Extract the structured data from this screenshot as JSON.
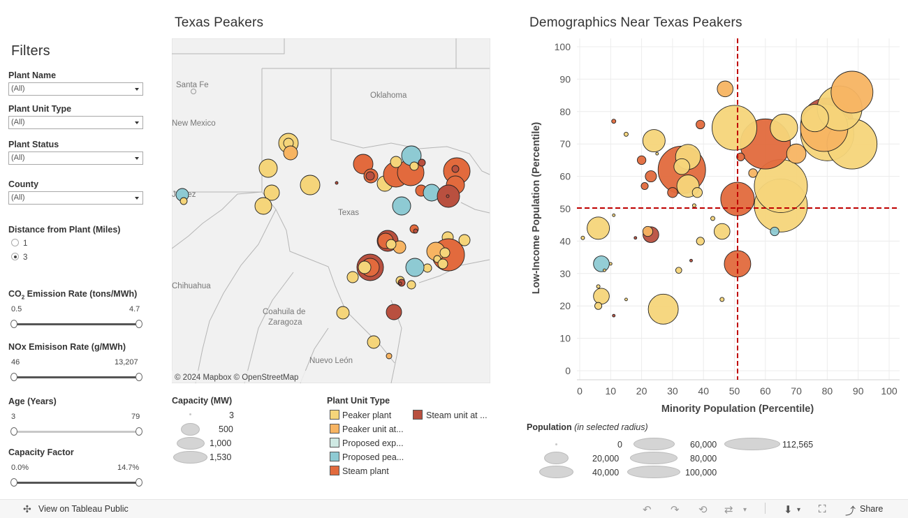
{
  "filters": {
    "heading": "Filters",
    "plant_name": {
      "label": "Plant Name",
      "value": "(All)"
    },
    "plant_unit_type": {
      "label": "Plant Unit Type",
      "value": "(All)"
    },
    "plant_status": {
      "label": "Plant Status",
      "value": "(All)"
    },
    "county": {
      "label": "County",
      "value": "(All)"
    },
    "distance": {
      "label": "Distance from Plant (Miles)",
      "options": [
        "1",
        "3"
      ],
      "selected": "3"
    },
    "co2": {
      "label_pre": "CO",
      "label_sub": "2",
      "label_post": " Emission Rate (tons/MWh)",
      "min": "0.5",
      "max": "4.7"
    },
    "nox": {
      "label": "NOх Emisison Rate (g/MWh)",
      "min": "46",
      "max": "13,207"
    },
    "age": {
      "label": "Age (Years)",
      "min": "3",
      "max": "79"
    },
    "capacity_factor": {
      "label": "Capacity Factor",
      "min": "0.0%",
      "max": "14.7%"
    }
  },
  "map": {
    "title": "Texas Peakers",
    "places": [
      "Santa Fe",
      "Oklahoma",
      "New Mexico",
      "Texas",
      "Chihuahua",
      "Coahuila de",
      "Zaragoza",
      "Nuevo León",
      "Juárez"
    ],
    "attribution": "© 2024 Mapbox  © OpenStreetMap"
  },
  "legend_capacity": {
    "title": "Capacity (MW)",
    "items": [
      "3",
      "500",
      "1,000",
      "1,530"
    ]
  },
  "legend_type": {
    "title": "Plant Unit Type",
    "items": [
      {
        "label": "Peaker plant",
        "color": "#f5d57a"
      },
      {
        "label": "Peaker unit at...",
        "color": "#f7b462"
      },
      {
        "label": "Proposed exp...",
        "color": "#cfe9e3"
      },
      {
        "label": "Proposed pea...",
        "color": "#8ecad3"
      },
      {
        "label": "Steam plant",
        "color": "#e26a3d"
      },
      {
        "label": "Steam unit at ...",
        "color": "#b9503f"
      }
    ]
  },
  "scatter": {
    "title": "Demographics Near Texas Peakers",
    "xlabel": "Minority Population (Percentile)",
    "ylabel": "Low-Income Population (Percentile)",
    "xticks": [
      "0",
      "10",
      "20",
      "30",
      "40",
      "50",
      "60",
      "70",
      "80",
      "90",
      "100"
    ],
    "yticks": [
      "0",
      "10",
      "20",
      "30",
      "40",
      "50",
      "60",
      "70",
      "80",
      "90",
      "100"
    ]
  },
  "legend_population": {
    "title": "Population",
    "subtitle": "(in selected radius)",
    "items": [
      "0",
      "20,000",
      "40,000",
      "60,000",
      "80,000",
      "100,000",
      "112,565"
    ]
  },
  "footer": {
    "view_label": "View on Tableau Public",
    "share_label": "Share"
  },
  "chart_data": {
    "type": "scatter",
    "title": "Demographics Near Texas Peakers",
    "xlabel": "Minority Population (Percentile)",
    "ylabel": "Low-Income Population (Percentile)",
    "xlim": [
      0,
      100
    ],
    "ylim": [
      0,
      100
    ],
    "reference_lines": {
      "x": 49,
      "y": 50
    },
    "size_key": "Population (in selected radius)",
    "points": [
      {
        "x": 1,
        "y": 41,
        "pop": 500,
        "t": "pk"
      },
      {
        "x": 6,
        "y": 26,
        "pop": 500,
        "t": "pk"
      },
      {
        "x": 6,
        "y": 44,
        "pop": 20000,
        "t": "pk"
      },
      {
        "x": 6,
        "y": 20,
        "pop": 2000,
        "t": "pk"
      },
      {
        "x": 7,
        "y": 23,
        "pop": 10000,
        "t": "pk"
      },
      {
        "x": 7,
        "y": 33,
        "pop": 10000,
        "t": "pp"
      },
      {
        "x": 8,
        "y": 31,
        "pop": 300,
        "t": "pk"
      },
      {
        "x": 10,
        "y": 33,
        "pop": 300,
        "t": "pk"
      },
      {
        "x": 11,
        "y": 77,
        "pop": 700,
        "t": "st"
      },
      {
        "x": 11,
        "y": 48,
        "pop": 300,
        "t": "pk"
      },
      {
        "x": 11,
        "y": 17,
        "pop": 300,
        "t": "su"
      },
      {
        "x": 15,
        "y": 73,
        "pop": 700,
        "t": "pk"
      },
      {
        "x": 15,
        "y": 22,
        "pop": 300,
        "t": "pk"
      },
      {
        "x": 18,
        "y": 41,
        "pop": 300,
        "t": "su"
      },
      {
        "x": 20,
        "y": 65,
        "pop": 3000,
        "t": "st"
      },
      {
        "x": 21,
        "y": 57,
        "pop": 2000,
        "t": "st"
      },
      {
        "x": 22,
        "y": 43,
        "pop": 4000,
        "t": "pu"
      },
      {
        "x": 23,
        "y": 42,
        "pop": 10000,
        "t": "su"
      },
      {
        "x": 23,
        "y": 60,
        "pop": 5000,
        "t": "st"
      },
      {
        "x": 24,
        "y": 71,
        "pop": 20000,
        "t": "pk"
      },
      {
        "x": 25,
        "y": 67,
        "pop": 300,
        "t": "pk"
      },
      {
        "x": 27,
        "y": 19,
        "pop": 36000,
        "t": "pk"
      },
      {
        "x": 30,
        "y": 55,
        "pop": 4000,
        "t": "st"
      },
      {
        "x": 32,
        "y": 31,
        "pop": 1500,
        "t": "pk"
      },
      {
        "x": 33,
        "y": 63,
        "pop": 10000,
        "t": "pk"
      },
      {
        "x": 33,
        "y": 62,
        "pop": 90000,
        "t": "st"
      },
      {
        "x": 35,
        "y": 66,
        "pop": 25000,
        "t": "pk"
      },
      {
        "x": 35,
        "y": 57,
        "pop": 20000,
        "t": "pk"
      },
      {
        "x": 36,
        "y": 34,
        "pop": 300,
        "t": "su"
      },
      {
        "x": 37,
        "y": 51,
        "pop": 500,
        "t": "pk"
      },
      {
        "x": 38,
        "y": 55,
        "pop": 4000,
        "t": "pk"
      },
      {
        "x": 39,
        "y": 40,
        "pop": 2500,
        "t": "pk"
      },
      {
        "x": 39,
        "y": 76,
        "pop": 3000,
        "t": "st"
      },
      {
        "x": 43,
        "y": 47,
        "pop": 700,
        "t": "pk"
      },
      {
        "x": 46,
        "y": 43,
        "pop": 10000,
        "t": "pk"
      },
      {
        "x": 46,
        "y": 22,
        "pop": 700,
        "t": "pk"
      },
      {
        "x": 47,
        "y": 87,
        "pop": 10000,
        "t": "pu"
      },
      {
        "x": 50,
        "y": 75,
        "pop": 80000,
        "t": "pk"
      },
      {
        "x": 51,
        "y": 53,
        "pop": 45000,
        "t": "st"
      },
      {
        "x": 51,
        "y": 33,
        "pop": 28000,
        "t": "st"
      },
      {
        "x": 52,
        "y": 66,
        "pop": 2500,
        "t": "st"
      },
      {
        "x": 56,
        "y": 61,
        "pop": 3000,
        "t": "pu"
      },
      {
        "x": 60,
        "y": 70,
        "pop": 100000,
        "t": "st"
      },
      {
        "x": 63,
        "y": 43,
        "pop": 3000,
        "t": "pp"
      },
      {
        "x": 65,
        "y": 51,
        "pop": 112565,
        "t": "pk"
      },
      {
        "x": 65,
        "y": 57,
        "pop": 112565,
        "t": "pk"
      },
      {
        "x": 66,
        "y": 75,
        "pop": 30000,
        "t": "pk"
      },
      {
        "x": 70,
        "y": 67,
        "pop": 15000,
        "t": "pu"
      },
      {
        "x": 76,
        "y": 78,
        "pop": 30000,
        "t": "pk"
      },
      {
        "x": 79,
        "y": 75,
        "pop": 90000,
        "t": "pu"
      },
      {
        "x": 80,
        "y": 76,
        "pop": 112565,
        "t": "su"
      },
      {
        "x": 80,
        "y": 73,
        "pop": 112565,
        "t": "pk"
      },
      {
        "x": 84,
        "y": 81,
        "pop": 80000,
        "t": "pk"
      },
      {
        "x": 88,
        "y": 86,
        "pop": 70000,
        "t": "pu"
      },
      {
        "x": 88,
        "y": 70,
        "pop": 100000,
        "t": "pk"
      }
    ],
    "map_points": [
      {
        "x": 413,
        "y": 205,
        "r": 14,
        "t": "pk"
      },
      {
        "x": 413,
        "y": 205,
        "r": 7,
        "t": "pk"
      },
      {
        "x": 416,
        "y": 219,
        "r": 10,
        "t": "pu"
      },
      {
        "x": 384,
        "y": 241,
        "r": 13,
        "t": "pk"
      },
      {
        "x": 389,
        "y": 276,
        "r": 11,
        "t": "pk"
      },
      {
        "x": 377,
        "y": 295,
        "r": 12,
        "t": "pk"
      },
      {
        "x": 444,
        "y": 265,
        "r": 14,
        "t": "pk"
      },
      {
        "x": 261,
        "y": 279,
        "r": 9,
        "t": "pp"
      },
      {
        "x": 263,
        "y": 288,
        "r": 5,
        "t": "pk"
      },
      {
        "x": 482,
        "y": 262,
        "r": 2,
        "t": "su"
      },
      {
        "x": 520,
        "y": 235,
        "r": 14,
        "t": "st"
      },
      {
        "x": 531,
        "y": 252,
        "r": 10,
        "t": "st"
      },
      {
        "x": 530,
        "y": 252,
        "r": 6,
        "t": "su"
      },
      {
        "x": 551,
        "y": 263,
        "r": 11,
        "t": "pk"
      },
      {
        "x": 567,
        "y": 250,
        "r": 18,
        "t": "st"
      },
      {
        "x": 588,
        "y": 247,
        "r": 19,
        "t": "st"
      },
      {
        "x": 567,
        "y": 232,
        "r": 8,
        "t": "pk"
      },
      {
        "x": 589,
        "y": 223,
        "r": 14,
        "t": "pp"
      },
      {
        "x": 593,
        "y": 238,
        "r": 6,
        "t": "pk"
      },
      {
        "x": 604,
        "y": 233,
        "r": 5,
        "t": "su"
      },
      {
        "x": 603,
        "y": 273,
        "r": 8,
        "t": "st"
      },
      {
        "x": 618,
        "y": 276,
        "r": 12,
        "t": "pp"
      },
      {
        "x": 654,
        "y": 245,
        "r": 19,
        "t": "st"
      },
      {
        "x": 652,
        "y": 242,
        "r": 5,
        "t": "su"
      },
      {
        "x": 652,
        "y": 265,
        "r": 13,
        "t": "st"
      },
      {
        "x": 642,
        "y": 281,
        "r": 16,
        "t": "su"
      },
      {
        "x": 641,
        "y": 281,
        "r": 2,
        "t": "su"
      },
      {
        "x": 575,
        "y": 295,
        "r": 13,
        "t": "pp"
      },
      {
        "x": 593,
        "y": 328,
        "r": 6,
        "t": "st"
      },
      {
        "x": 595,
        "y": 331,
        "r": 3,
        "t": "su"
      },
      {
        "x": 555,
        "y": 345,
        "r": 15,
        "t": "su"
      },
      {
        "x": 552,
        "y": 345,
        "r": 11,
        "t": "st"
      },
      {
        "x": 572,
        "y": 354,
        "r": 9,
        "t": "pu"
      },
      {
        "x": 560,
        "y": 350,
        "r": 7,
        "t": "pk"
      },
      {
        "x": 641,
        "y": 340,
        "r": 8,
        "t": "pk"
      },
      {
        "x": 665,
        "y": 344,
        "r": 8,
        "t": "pk"
      },
      {
        "x": 642,
        "y": 365,
        "r": 23,
        "t": "st"
      },
      {
        "x": 624,
        "y": 360,
        "r": 13,
        "t": "pu"
      },
      {
        "x": 637,
        "y": 362,
        "r": 7,
        "t": "pk"
      },
      {
        "x": 626,
        "y": 371,
        "r": 5,
        "t": "pk"
      },
      {
        "x": 634,
        "y": 378,
        "r": 7,
        "t": "pk"
      },
      {
        "x": 612,
        "y": 384,
        "r": 6,
        "t": "pk"
      },
      {
        "x": 530,
        "y": 383,
        "r": 19,
        "t": "su"
      },
      {
        "x": 530,
        "y": 383,
        "r": 13,
        "t": "st"
      },
      {
        "x": 522,
        "y": 383,
        "r": 9,
        "t": "pk"
      },
      {
        "x": 505,
        "y": 397,
        "r": 8,
        "t": "pk"
      },
      {
        "x": 594,
        "y": 383,
        "r": 13,
        "t": "pp"
      },
      {
        "x": 573,
        "y": 402,
        "r": 6,
        "t": "pk"
      },
      {
        "x": 575,
        "y": 405,
        "r": 5,
        "t": "su"
      },
      {
        "x": 589,
        "y": 408,
        "r": 6,
        "t": "pk"
      },
      {
        "x": 573,
        "y": 406,
        "r": 2,
        "t": "su"
      },
      {
        "x": 491,
        "y": 448,
        "r": 9,
        "t": "pk"
      },
      {
        "x": 564,
        "y": 447,
        "r": 11,
        "t": "su"
      },
      {
        "x": 535,
        "y": 490,
        "r": 9,
        "t": "pk"
      },
      {
        "x": 557,
        "y": 510,
        "r": 4,
        "t": "pu"
      }
    ],
    "type_colors": {
      "pk": "#f5d57a",
      "pu": "#f7b462",
      "pe": "#cfe9e3",
      "pp": "#8ecad3",
      "st": "#e26a3d",
      "su": "#b9503f"
    }
  }
}
